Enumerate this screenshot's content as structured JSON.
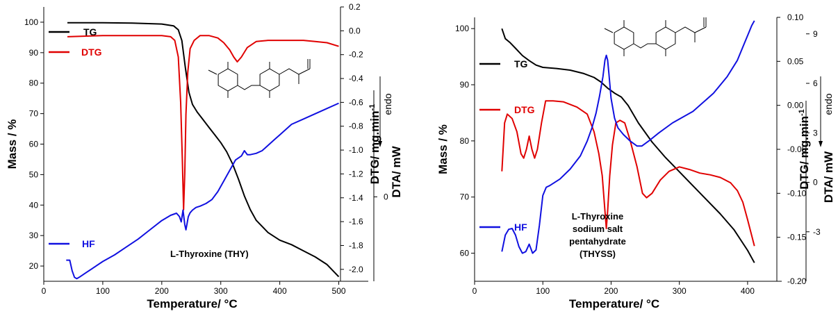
{
  "chart_data": [
    {
      "type": "line",
      "annotation_lines": [
        "L-Thyroxine (THY)"
      ],
      "xlabel": "Temperature/ °C",
      "ylabel_left": "Mass / %",
      "ylabel_dtg": "DTG/ mg.min",
      "ylabel_dtg_sup": "-1",
      "ylabel_dta": "DTA/ mW",
      "endo_label": "endo",
      "xlim": [
        0,
        550
      ],
      "ylim_left": [
        15,
        105
      ],
      "ylim_dtg": [
        -2.1,
        0.2
      ],
      "ylim_dta": [
        -3.2,
        7.2
      ],
      "x_ticks": [
        "0",
        "100",
        "200",
        "300",
        "400",
        "500"
      ],
      "y_left_ticks": [
        "20",
        "30",
        "40",
        "50",
        "60",
        "70",
        "80",
        "90",
        "100"
      ],
      "y_dtg_ticks": [
        "0.2",
        "0.0",
        "-0.2",
        "-0.4",
        "-0.6",
        "-0.8",
        "-1.0",
        "-1.2",
        "-1.4",
        "-1.6",
        "-1.8",
        "-2.0"
      ],
      "y_dta_ticks": [
        "0"
      ],
      "series": [
        {
          "name": "TG",
          "color": "#000000",
          "axis": "left",
          "x": [
            40,
            100,
            150,
            200,
            220,
            228,
            234,
            240,
            246,
            252,
            260,
            270,
            280,
            290,
            300,
            310,
            320,
            330,
            340,
            350,
            360,
            380,
            400,
            420,
            440,
            460,
            480,
            500
          ],
          "y": [
            99.8,
            99.8,
            99.7,
            99.4,
            98.8,
            97.5,
            94,
            85,
            77,
            73,
            70.5,
            68,
            65.5,
            63,
            60.5,
            57.5,
            53.5,
            48.5,
            43,
            38.5,
            35,
            31,
            28.5,
            27,
            25,
            23,
            20.5,
            16.5
          ]
        },
        {
          "name": "DTG",
          "color": "#e00000",
          "axis": "dtg",
          "x": [
            40,
            100,
            150,
            200,
            215,
            222,
            228,
            232,
            235,
            237,
            239,
            241,
            244,
            248,
            255,
            265,
            280,
            295,
            305,
            315,
            322,
            328,
            335,
            345,
            360,
            380,
            400,
            420,
            440,
            460,
            480,
            500
          ],
          "y": [
            -0.05,
            -0.04,
            -0.04,
            -0.04,
            -0.05,
            -0.08,
            -0.22,
            -0.6,
            -1.1,
            -1.5,
            -1.2,
            -0.7,
            -0.35,
            -0.15,
            -0.08,
            -0.04,
            -0.04,
            -0.06,
            -0.1,
            -0.16,
            -0.22,
            -0.26,
            -0.22,
            -0.14,
            -0.09,
            -0.08,
            -0.08,
            -0.08,
            -0.08,
            -0.09,
            -0.1,
            -0.13
          ]
        },
        {
          "name": "HF",
          "color": "#1010e0",
          "axis": "dta",
          "x": [
            38,
            44,
            48,
            52,
            56,
            60,
            70,
            80,
            100,
            120,
            140,
            160,
            180,
            200,
            215,
            225,
            230,
            233,
            236,
            239,
            241,
            243,
            245,
            248,
            252,
            258,
            265,
            275,
            285,
            295,
            305,
            315,
            325,
            335,
            340,
            345,
            350,
            360,
            370,
            380,
            390,
            400,
            420,
            440,
            460,
            480,
            500
          ],
          "y": [
            -2.4,
            -2.4,
            -2.8,
            -3.05,
            -3.1,
            -3.05,
            -2.9,
            -2.75,
            -2.45,
            -2.2,
            -1.9,
            -1.6,
            -1.25,
            -0.9,
            -0.7,
            -0.62,
            -0.75,
            -0.95,
            -0.5,
            -1.05,
            -1.25,
            -1.0,
            -0.75,
            -0.6,
            -0.5,
            -0.4,
            -0.35,
            -0.25,
            -0.1,
            0.2,
            0.6,
            1.0,
            1.4,
            1.55,
            1.75,
            1.6,
            1.6,
            1.65,
            1.75,
            1.95,
            2.15,
            2.35,
            2.75,
            2.95,
            3.15,
            3.35,
            3.55
          ]
        }
      ]
    },
    {
      "type": "line",
      "annotation_lines": [
        "L-Thyroxine",
        "sodium salt",
        "pentahydrate",
        "(THYSS)"
      ],
      "xlabel": "Temperature/ °C",
      "ylabel_left": "Mass / %",
      "ylabel_dtg": "DTG/ mg.min",
      "ylabel_dtg_sup": "-1",
      "ylabel_dta": "DTA/ mW",
      "endo_label": "endo",
      "xlim": [
        0,
        450
      ],
      "ylim_left": [
        55,
        102
      ],
      "ylim_dtg": [
        -0.2,
        0.1
      ],
      "ylim_dta": [
        -6,
        10
      ],
      "x_ticks": [
        "0",
        "100",
        "200",
        "300",
        "400"
      ],
      "y_left_ticks": [
        "60",
        "70",
        "80",
        "90",
        "100"
      ],
      "y_dtg_ticks": [
        "0.10",
        "0.05",
        "0.00",
        "-0.05",
        "-0.10",
        "-0.15",
        "-0.20"
      ],
      "y_dta_ticks": [
        "9",
        "6",
        "3",
        "0",
        "-3"
      ],
      "series": [
        {
          "name": "TG",
          "color": "#000000",
          "axis": "left",
          "x": [
            40,
            45,
            52,
            60,
            70,
            80,
            90,
            100,
            120,
            140,
            160,
            175,
            185,
            195,
            205,
            215,
            225,
            240,
            260,
            280,
            300,
            320,
            340,
            360,
            380,
            400,
            410
          ],
          "y": [
            100,
            98.2,
            97.5,
            96.5,
            95.2,
            94.3,
            93.5,
            93.1,
            92.9,
            92.6,
            92,
            91.3,
            90.5,
            89.4,
            88.5,
            87.8,
            86.3,
            83.2,
            79.8,
            77,
            74.5,
            72,
            69.5,
            67,
            64.2,
            60.5,
            58.3
          ]
        },
        {
          "name": "DTG",
          "color": "#e00000",
          "axis": "dtg",
          "x": [
            40,
            44,
            48,
            55,
            62,
            68,
            72,
            76,
            80,
            84,
            88,
            92,
            98,
            104,
            115,
            130,
            150,
            165,
            175,
            182,
            187,
            191,
            193,
            195,
            198,
            202,
            207,
            213,
            220,
            228,
            238,
            246,
            252,
            260,
            272,
            285,
            300,
            315,
            330,
            345,
            360,
            375,
            385,
            393,
            400,
            405,
            410
          ],
          "y": [
            -0.075,
            -0.02,
            -0.01,
            -0.015,
            -0.03,
            -0.055,
            -0.06,
            -0.05,
            -0.035,
            -0.05,
            -0.06,
            -0.05,
            -0.02,
            0.005,
            0.005,
            0.004,
            -0.002,
            -0.01,
            -0.03,
            -0.055,
            -0.08,
            -0.12,
            -0.14,
            -0.12,
            -0.08,
            -0.045,
            -0.02,
            -0.017,
            -0.02,
            -0.04,
            -0.07,
            -0.1,
            -0.105,
            -0.1,
            -0.085,
            -0.075,
            -0.07,
            -0.073,
            -0.077,
            -0.079,
            -0.082,
            -0.088,
            -0.097,
            -0.11,
            -0.13,
            -0.145,
            -0.16
          ]
        },
        {
          "name": "HF",
          "color": "#1010e0",
          "axis": "dta",
          "x": [
            40,
            45,
            50,
            55,
            60,
            65,
            70,
            75,
            80,
            85,
            90,
            95,
            100,
            105,
            110,
            125,
            140,
            155,
            165,
            172,
            178,
            183,
            188,
            191,
            193,
            195,
            197,
            200,
            205,
            210,
            218,
            228,
            238,
            245,
            255,
            270,
            290,
            320,
            350,
            370,
            385,
            395,
            402,
            406,
            410
          ],
          "y": [
            -4.2,
            -3.2,
            -2.85,
            -2.8,
            -3.2,
            -3.9,
            -4.3,
            -4.2,
            -3.75,
            -4.3,
            -4.1,
            -2.6,
            -0.8,
            -0.3,
            -0.2,
            0.2,
            0.8,
            1.6,
            2.5,
            3.3,
            4.2,
            5.2,
            6.4,
            7.4,
            7.7,
            7.4,
            6.5,
            5.1,
            3.9,
            3.3,
            2.9,
            2.5,
            2.2,
            2.2,
            2.5,
            3.0,
            3.6,
            4.3,
            5.4,
            6.4,
            7.4,
            8.4,
            9.1,
            9.5,
            9.8
          ]
        }
      ]
    }
  ]
}
